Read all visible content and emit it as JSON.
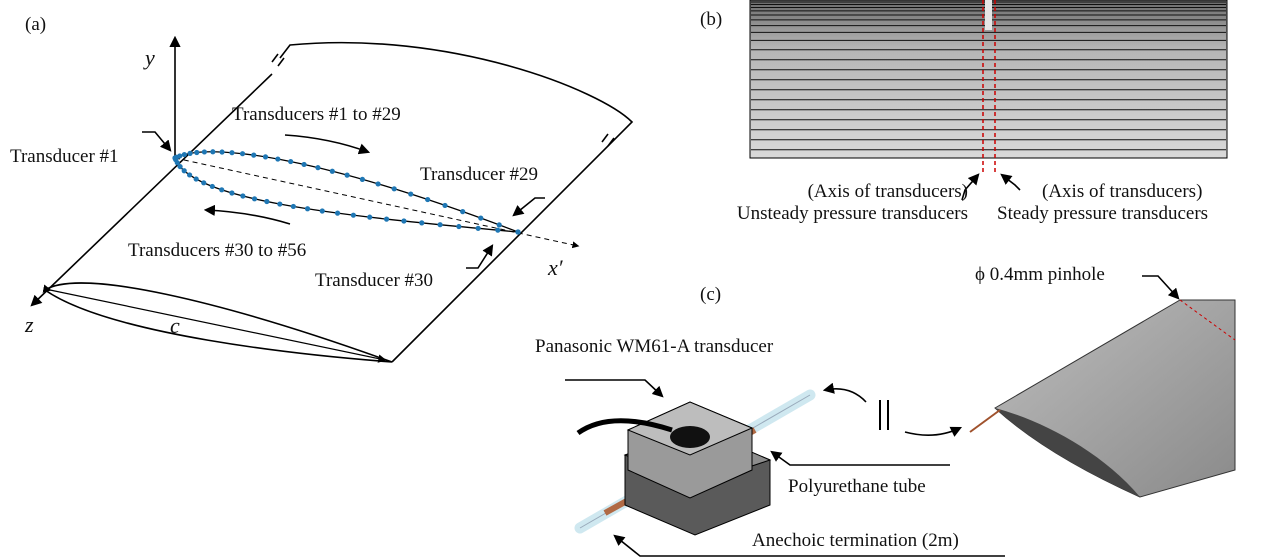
{
  "panel_a": {
    "label": "(a)",
    "y_axis": "y",
    "z_axis": "z",
    "x_axis": "x′",
    "chord": "c",
    "transducer_1": "Transducer #1",
    "transducers_1_29": "Transducers #1 to #29",
    "transducer_29": "Transducer #29",
    "transducers_30_56": "Transducers #30 to #56",
    "transducer_30": "Transducer #30"
  },
  "panel_b": {
    "label": "(b)",
    "axis_left": "(Axis of transducers)",
    "unsteady": "Unsteady pressure transducers",
    "axis_right": "(Axis of transducers)",
    "steady": "Steady pressure transducers"
  },
  "panel_c": {
    "label": "(c)",
    "pinhole": "ϕ 0.4mm pinhole",
    "transducer": "Panasonic WM61-A transducer",
    "tube": "Polyurethane tube",
    "termination": "Anechoic termination (2m)"
  }
}
